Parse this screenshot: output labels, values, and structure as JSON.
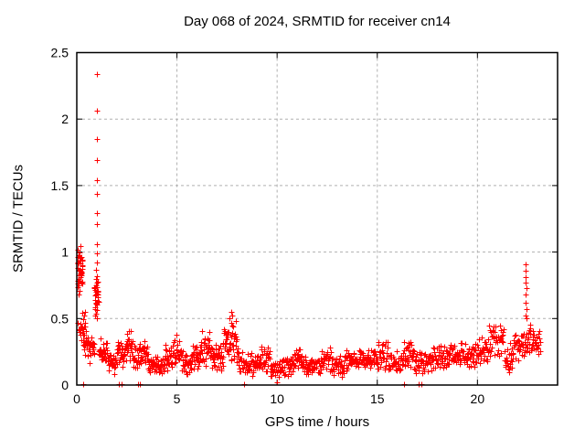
{
  "chart_data": {
    "type": "scatter",
    "title": "Day 068 of 2024, SRMTID for receiver cn14",
    "xlabel": "GPS time / hours",
    "ylabel": "SRMTID / TECUs",
    "xlim": [
      0,
      24
    ],
    "ylim": [
      0,
      2.5
    ],
    "xticks": {
      "values": [
        0,
        5,
        10,
        15,
        20
      ],
      "labels": [
        "0",
        "5",
        "10",
        "15",
        "20"
      ]
    },
    "yticks": {
      "values": [
        0,
        0.5,
        1,
        1.5,
        2,
        2.5
      ],
      "labels": [
        "0",
        "0.5",
        "1",
        "1.5",
        "2",
        "2.5"
      ]
    },
    "grid": true,
    "legend": "none",
    "marker": "plus",
    "marker_color": "#ff0000",
    "grid_color": "#b0b0b0",
    "frame_color": "#000000",
    "highlight_points": [
      [
        1.0,
        2.34
      ],
      [
        1.0,
        2.06
      ],
      [
        1.0,
        1.85
      ],
      [
        1.0,
        1.69
      ],
      [
        1.0,
        1.54
      ],
      [
        1.0,
        1.44
      ],
      [
        1.0,
        1.29
      ],
      [
        1.0,
        1.21
      ],
      [
        1.0,
        1.06
      ],
      [
        0.99,
        0.99
      ],
      [
        1.0,
        0.92
      ],
      [
        0.98,
        0.87
      ],
      [
        1.01,
        0.82
      ],
      [
        1.0,
        0.77
      ],
      [
        22.42,
        0.91
      ],
      [
        22.42,
        0.86
      ],
      [
        22.4,
        0.81
      ],
      [
        22.42,
        0.77
      ],
      [
        22.44,
        0.73
      ],
      [
        22.42,
        0.68
      ],
      [
        22.4,
        0.62
      ],
      [
        22.43,
        0.57
      ],
      [
        22.42,
        0.52
      ],
      [
        22.45,
        0.5
      ],
      [
        0.05,
        1.02
      ],
      [
        0.08,
        0.98
      ],
      [
        0.12,
        1.0
      ],
      [
        7.7,
        0.55
      ],
      [
        7.75,
        0.52
      ],
      [
        7.62,
        0.5
      ],
      [
        0.3,
        0.01
      ],
      [
        2.1,
        0.01
      ],
      [
        2.25,
        0.01
      ],
      [
        3.05,
        0.01
      ],
      [
        3.17,
        0.01
      ],
      [
        8.35,
        0.01
      ],
      [
        10.0,
        0.02
      ],
      [
        16.35,
        0.01
      ],
      [
        17.08,
        0.01
      ],
      [
        17.2,
        0.01
      ]
    ],
    "scatter_bands": [
      {
        "x0": 0.02,
        "x1": 0.3,
        "n": 46,
        "mean": 0.85,
        "spread": 0.14
      },
      {
        "x0": 0.05,
        "x1": 0.45,
        "n": 20,
        "mean": 0.44,
        "spread": 0.1
      },
      {
        "x0": 0.28,
        "x1": 0.62,
        "n": 22,
        "mean": 0.33,
        "spread": 0.08
      },
      {
        "x0": 0.6,
        "x1": 0.88,
        "n": 20,
        "mean": 0.26,
        "spread": 0.07
      },
      {
        "x0": 0.88,
        "x1": 1.08,
        "n": 32,
        "mean": 0.66,
        "spread": 0.11
      },
      {
        "x0": 1.08,
        "x1": 1.5,
        "n": 30,
        "mean": 0.25,
        "spread": 0.08
      },
      {
        "x0": 1.5,
        "x1": 2.0,
        "n": 32,
        "mean": 0.17,
        "spread": 0.06
      },
      {
        "x0": 2.0,
        "x1": 2.45,
        "n": 30,
        "mean": 0.24,
        "spread": 0.08
      },
      {
        "x0": 2.45,
        "x1": 2.8,
        "n": 26,
        "mean": 0.3,
        "spread": 0.09
      },
      {
        "x0": 2.8,
        "x1": 3.1,
        "n": 18,
        "mean": 0.2,
        "spread": 0.07
      },
      {
        "x0": 3.1,
        "x1": 3.55,
        "n": 30,
        "mean": 0.24,
        "spread": 0.08
      },
      {
        "x0": 3.55,
        "x1": 4.4,
        "n": 50,
        "mean": 0.14,
        "spread": 0.05
      },
      {
        "x0": 4.4,
        "x1": 4.75,
        "n": 22,
        "mean": 0.2,
        "spread": 0.08
      },
      {
        "x0": 4.75,
        "x1": 5.2,
        "n": 30,
        "mean": 0.25,
        "spread": 0.1
      },
      {
        "x0": 5.2,
        "x1": 5.75,
        "n": 34,
        "mean": 0.17,
        "spread": 0.06
      },
      {
        "x0": 5.75,
        "x1": 6.15,
        "n": 26,
        "mean": 0.22,
        "spread": 0.08
      },
      {
        "x0": 6.15,
        "x1": 6.7,
        "n": 36,
        "mean": 0.28,
        "spread": 0.1
      },
      {
        "x0": 6.7,
        "x1": 7.3,
        "n": 40,
        "mean": 0.22,
        "spread": 0.09
      },
      {
        "x0": 7.3,
        "x1": 8.05,
        "n": 52,
        "mean": 0.33,
        "spread": 0.12
      },
      {
        "x0": 8.05,
        "x1": 8.5,
        "n": 26,
        "mean": 0.17,
        "spread": 0.07
      },
      {
        "x0": 8.5,
        "x1": 9.2,
        "n": 40,
        "mean": 0.15,
        "spread": 0.06
      },
      {
        "x0": 9.2,
        "x1": 9.65,
        "n": 26,
        "mean": 0.2,
        "spread": 0.07
      },
      {
        "x0": 9.65,
        "x1": 10.15,
        "n": 30,
        "mean": 0.11,
        "spread": 0.05
      },
      {
        "x0": 10.15,
        "x1": 10.75,
        "n": 34,
        "mean": 0.15,
        "spread": 0.06
      },
      {
        "x0": 10.75,
        "x1": 11.25,
        "n": 30,
        "mean": 0.2,
        "spread": 0.07
      },
      {
        "x0": 11.25,
        "x1": 12.15,
        "n": 50,
        "mean": 0.14,
        "spread": 0.05
      },
      {
        "x0": 12.15,
        "x1": 12.7,
        "n": 32,
        "mean": 0.2,
        "spread": 0.07
      },
      {
        "x0": 12.7,
        "x1": 13.35,
        "n": 38,
        "mean": 0.14,
        "spread": 0.05
      },
      {
        "x0": 13.35,
        "x1": 14.45,
        "n": 60,
        "mean": 0.18,
        "spread": 0.06
      },
      {
        "x0": 14.45,
        "x1": 15.0,
        "n": 32,
        "mean": 0.19,
        "spread": 0.06
      },
      {
        "x0": 15.0,
        "x1": 15.55,
        "n": 32,
        "mean": 0.24,
        "spread": 0.09
      },
      {
        "x0": 15.55,
        "x1": 16.25,
        "n": 40,
        "mean": 0.17,
        "spread": 0.06
      },
      {
        "x0": 16.25,
        "x1": 16.8,
        "n": 32,
        "mean": 0.24,
        "spread": 0.09
      },
      {
        "x0": 16.8,
        "x1": 17.55,
        "n": 42,
        "mean": 0.17,
        "spread": 0.06
      },
      {
        "x0": 17.55,
        "x1": 18.6,
        "n": 56,
        "mean": 0.2,
        "spread": 0.07
      },
      {
        "x0": 18.6,
        "x1": 19.6,
        "n": 54,
        "mean": 0.22,
        "spread": 0.07
      },
      {
        "x0": 19.6,
        "x1": 20.55,
        "n": 52,
        "mean": 0.25,
        "spread": 0.08
      },
      {
        "x0": 20.55,
        "x1": 21.35,
        "n": 42,
        "mean": 0.33,
        "spread": 0.1
      },
      {
        "x0": 21.35,
        "x1": 21.8,
        "n": 26,
        "mean": 0.2,
        "spread": 0.08
      },
      {
        "x0": 21.8,
        "x1": 22.35,
        "n": 30,
        "mean": 0.3,
        "spread": 0.08
      },
      {
        "x0": 22.35,
        "x1": 23.15,
        "n": 46,
        "mean": 0.32,
        "spread": 0.09
      }
    ]
  }
}
